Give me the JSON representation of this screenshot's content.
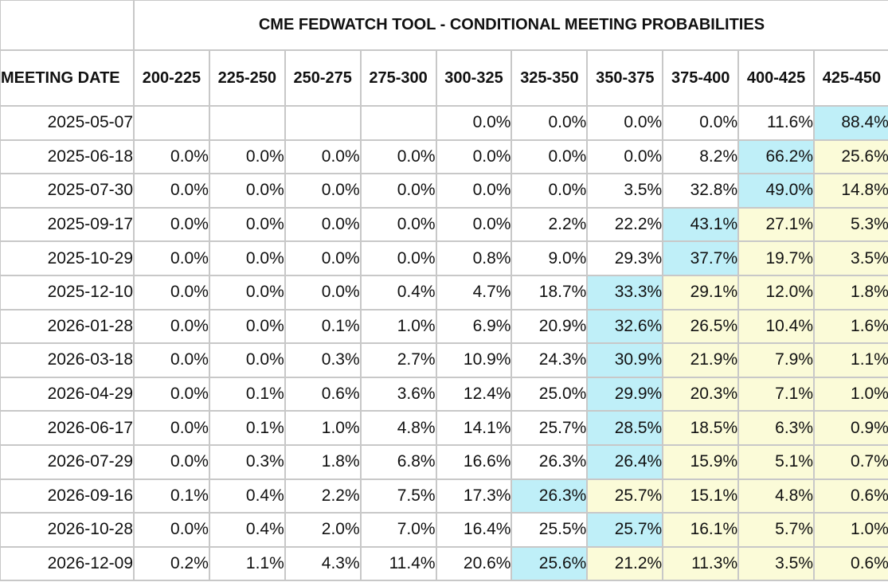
{
  "title": "CME FEDWATCH TOOL - CONDITIONAL MEETING PROBABILITIES",
  "date_header": "MEETING DATE",
  "columns": [
    "200-225",
    "225-250",
    "250-275",
    "275-300",
    "300-325",
    "325-350",
    "350-375",
    "375-400",
    "400-425",
    "425-450"
  ],
  "colors": {
    "highlight_max": "#bfeff8",
    "above_max": "#fbfbd8",
    "border": "#c8c8c8"
  },
  "rows": [
    {
      "date": "2025-05-07",
      "values": [
        "",
        "",
        "",
        "",
        "0.0%",
        "0.0%",
        "0.0%",
        "0.0%",
        "11.6%",
        "88.4%"
      ],
      "max_index": 9
    },
    {
      "date": "2025-06-18",
      "values": [
        "0.0%",
        "0.0%",
        "0.0%",
        "0.0%",
        "0.0%",
        "0.0%",
        "0.0%",
        "8.2%",
        "66.2%",
        "25.6%"
      ],
      "max_index": 8
    },
    {
      "date": "2025-07-30",
      "values": [
        "0.0%",
        "0.0%",
        "0.0%",
        "0.0%",
        "0.0%",
        "0.0%",
        "3.5%",
        "32.8%",
        "49.0%",
        "14.8%"
      ],
      "max_index": 8
    },
    {
      "date": "2025-09-17",
      "values": [
        "0.0%",
        "0.0%",
        "0.0%",
        "0.0%",
        "0.0%",
        "2.2%",
        "22.2%",
        "43.1%",
        "27.1%",
        "5.3%"
      ],
      "max_index": 7
    },
    {
      "date": "2025-10-29",
      "values": [
        "0.0%",
        "0.0%",
        "0.0%",
        "0.0%",
        "0.8%",
        "9.0%",
        "29.3%",
        "37.7%",
        "19.7%",
        "3.5%"
      ],
      "max_index": 7
    },
    {
      "date": "2025-12-10",
      "values": [
        "0.0%",
        "0.0%",
        "0.0%",
        "0.4%",
        "4.7%",
        "18.7%",
        "33.3%",
        "29.1%",
        "12.0%",
        "1.8%"
      ],
      "max_index": 6
    },
    {
      "date": "2026-01-28",
      "values": [
        "0.0%",
        "0.0%",
        "0.1%",
        "1.0%",
        "6.9%",
        "20.9%",
        "32.6%",
        "26.5%",
        "10.4%",
        "1.6%"
      ],
      "max_index": 6
    },
    {
      "date": "2026-03-18",
      "values": [
        "0.0%",
        "0.0%",
        "0.3%",
        "2.7%",
        "10.9%",
        "24.3%",
        "30.9%",
        "21.9%",
        "7.9%",
        "1.1%"
      ],
      "max_index": 6
    },
    {
      "date": "2026-04-29",
      "values": [
        "0.0%",
        "0.1%",
        "0.6%",
        "3.6%",
        "12.4%",
        "25.0%",
        "29.9%",
        "20.3%",
        "7.1%",
        "1.0%"
      ],
      "max_index": 6
    },
    {
      "date": "2026-06-17",
      "values": [
        "0.0%",
        "0.1%",
        "1.0%",
        "4.8%",
        "14.1%",
        "25.7%",
        "28.5%",
        "18.5%",
        "6.3%",
        "0.9%"
      ],
      "max_index": 6
    },
    {
      "date": "2026-07-29",
      "values": [
        "0.0%",
        "0.3%",
        "1.8%",
        "6.8%",
        "16.6%",
        "26.3%",
        "26.4%",
        "15.9%",
        "5.1%",
        "0.7%"
      ],
      "max_index": 6
    },
    {
      "date": "2026-09-16",
      "values": [
        "0.1%",
        "0.4%",
        "2.2%",
        "7.5%",
        "17.3%",
        "26.3%",
        "25.7%",
        "15.1%",
        "4.8%",
        "0.6%"
      ],
      "max_index": 5
    },
    {
      "date": "2026-10-28",
      "values": [
        "0.0%",
        "0.4%",
        "2.0%",
        "7.0%",
        "16.4%",
        "25.5%",
        "25.7%",
        "16.1%",
        "5.7%",
        "1.0%"
      ],
      "max_index": 6
    },
    {
      "date": "2026-12-09",
      "values": [
        "0.2%",
        "1.1%",
        "4.3%",
        "11.4%",
        "20.6%",
        "25.6%",
        "21.2%",
        "11.3%",
        "3.5%",
        "0.6%"
      ],
      "max_index": 5
    }
  ]
}
